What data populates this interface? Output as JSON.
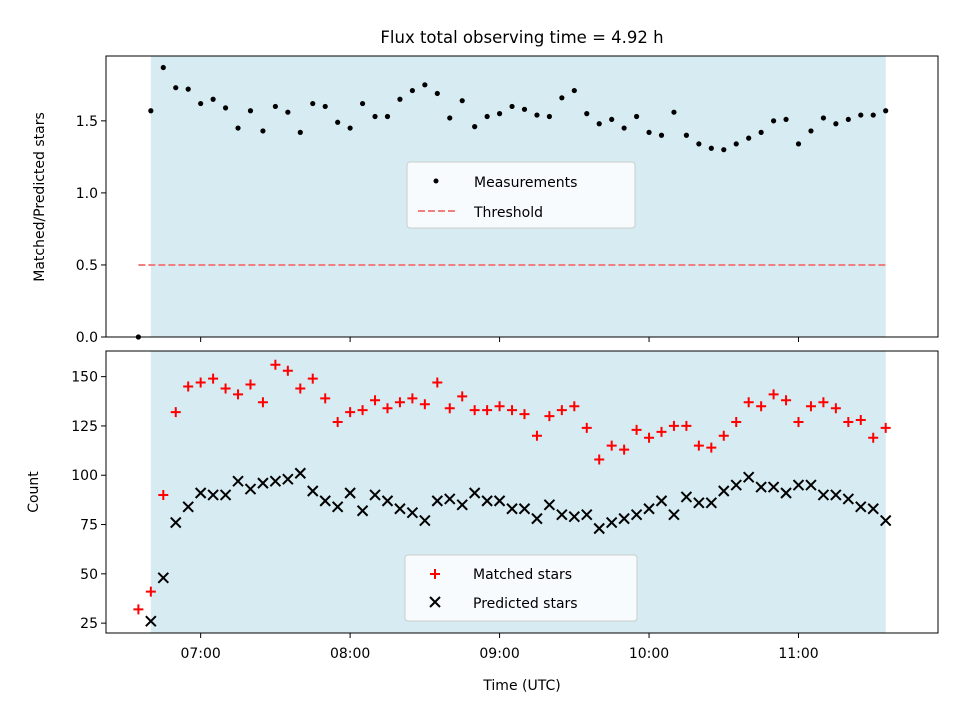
{
  "chart_data": [
    {
      "type": "scatter",
      "title": "Flux total observing time = 4.92 h",
      "ylabel": "Matched/Predicted stars",
      "xlabel": "",
      "xlim": [
        "06:22",
        "11:56"
      ],
      "ylim": [
        0,
        1.95
      ],
      "yticks": [
        0.0,
        0.5,
        1.0,
        1.5
      ],
      "ytick_labels": [
        "0.0",
        "0.5",
        "1.0",
        "1.5"
      ],
      "shaded_span": [
        "06:40",
        "11:35"
      ],
      "legend_position": "center",
      "series": [
        {
          "name": "Measurements",
          "marker": "dot",
          "color": "#000000",
          "x": [
            "06:35",
            "06:40",
            "06:45",
            "06:50",
            "06:55",
            "07:00",
            "07:05",
            "07:10",
            "07:15",
            "07:20",
            "07:25",
            "07:30",
            "07:35",
            "07:40",
            "07:45",
            "07:50",
            "07:55",
            "08:00",
            "08:05",
            "08:10",
            "08:15",
            "08:20",
            "08:25",
            "08:30",
            "08:35",
            "08:40",
            "08:45",
            "08:50",
            "08:55",
            "09:00",
            "09:05",
            "09:10",
            "09:15",
            "09:20",
            "09:25",
            "09:30",
            "09:35",
            "09:40",
            "09:45",
            "09:50",
            "09:55",
            "10:00",
            "10:05",
            "10:10",
            "10:15",
            "10:20",
            "10:25",
            "10:30",
            "10:35",
            "10:40",
            "10:45",
            "10:50",
            "10:55",
            "11:00",
            "11:05",
            "11:10",
            "11:15",
            "11:20",
            "11:25",
            "11:30",
            "11:35"
          ],
          "y": [
            0.0,
            1.57,
            1.87,
            1.73,
            1.72,
            1.62,
            1.65,
            1.59,
            1.45,
            1.57,
            1.43,
            1.6,
            1.56,
            1.42,
            1.62,
            1.6,
            1.49,
            1.45,
            1.62,
            1.53,
            1.53,
            1.65,
            1.71,
            1.75,
            1.69,
            1.52,
            1.64,
            1.46,
            1.53,
            1.55,
            1.6,
            1.58,
            1.54,
            1.53,
            1.66,
            1.71,
            1.55,
            1.48,
            1.51,
            1.45,
            1.53,
            1.42,
            1.4,
            1.56,
            1.4,
            1.34,
            1.31,
            1.3,
            1.34,
            1.38,
            1.42,
            1.5,
            1.51,
            1.34,
            1.43,
            1.52,
            1.48,
            1.51,
            1.54,
            1.54,
            1.57
          ]
        },
        {
          "name": "Threshold",
          "marker": "dashed-line",
          "color": "#f08080",
          "x": [
            "06:35",
            "11:35"
          ],
          "y": [
            0.5,
            0.5
          ]
        }
      ]
    },
    {
      "type": "scatter",
      "title": "",
      "ylabel": "Count",
      "xlabel": "Time (UTC)",
      "xlim": [
        "06:22",
        "11:56"
      ],
      "ylim": [
        20,
        163
      ],
      "yticks": [
        25,
        50,
        75,
        100,
        125,
        150
      ],
      "ytick_labels": [
        "25",
        "50",
        "75",
        "100",
        "125",
        "150"
      ],
      "xticks": [
        "07:00",
        "08:00",
        "09:00",
        "10:00",
        "11:00"
      ],
      "xtick_labels": [
        "07:00",
        "08:00",
        "09:00",
        "10:00",
        "11:00"
      ],
      "shaded_span": [
        "06:40",
        "11:35"
      ],
      "legend_position": "lower center",
      "series": [
        {
          "name": "Matched stars",
          "marker": "plus",
          "color": "#ff0000",
          "x": [
            "06:35",
            "06:40",
            "06:45",
            "06:50",
            "06:55",
            "07:00",
            "07:05",
            "07:10",
            "07:15",
            "07:20",
            "07:25",
            "07:30",
            "07:35",
            "07:40",
            "07:45",
            "07:50",
            "07:55",
            "08:00",
            "08:05",
            "08:10",
            "08:15",
            "08:20",
            "08:25",
            "08:30",
            "08:35",
            "08:40",
            "08:45",
            "08:50",
            "08:55",
            "09:00",
            "09:05",
            "09:10",
            "09:15",
            "09:20",
            "09:25",
            "09:30",
            "09:35",
            "09:40",
            "09:45",
            "09:50",
            "09:55",
            "10:00",
            "10:05",
            "10:10",
            "10:15",
            "10:20",
            "10:25",
            "10:30",
            "10:35",
            "10:40",
            "10:45",
            "10:50",
            "10:55",
            "11:00",
            "11:05",
            "11:10",
            "11:15",
            "11:20",
            "11:25",
            "11:30",
            "11:35"
          ],
          "y": [
            32,
            41,
            90,
            132,
            145,
            147,
            149,
            144,
            141,
            146,
            137,
            156,
            153,
            144,
            149,
            139,
            127,
            132,
            133,
            138,
            134,
            137,
            139,
            136,
            147,
            134,
            140,
            133,
            133,
            135,
            133,
            131,
            120,
            130,
            133,
            135,
            124,
            108,
            115,
            113,
            123,
            119,
            122,
            125,
            125,
            115,
            114,
            120,
            127,
            137,
            135,
            141,
            138,
            127,
            135,
            137,
            134,
            127,
            128,
            119,
            124
          ]
        },
        {
          "name": "Predicted stars",
          "marker": "x",
          "color": "#000000",
          "x": [
            "06:35",
            "06:40",
            "06:45",
            "06:50",
            "06:55",
            "07:00",
            "07:05",
            "07:10",
            "07:15",
            "07:20",
            "07:25",
            "07:30",
            "07:35",
            "07:40",
            "07:45",
            "07:50",
            "07:55",
            "08:00",
            "08:05",
            "08:10",
            "08:15",
            "08:20",
            "08:25",
            "08:30",
            "08:35",
            "08:40",
            "08:45",
            "08:50",
            "08:55",
            "09:00",
            "09:05",
            "09:10",
            "09:15",
            "09:20",
            "09:25",
            "09:30",
            "09:35",
            "09:40",
            "09:45",
            "09:50",
            "09:55",
            "10:00",
            "10:05",
            "10:10",
            "10:15",
            "10:20",
            "10:25",
            "10:30",
            "10:35",
            "10:40",
            "10:45",
            "10:50",
            "10:55",
            "11:00",
            "11:05",
            "11:10",
            "11:15",
            "11:20",
            "11:25",
            "11:30",
            "11:35"
          ],
          "y": [
            null,
            26,
            48,
            76,
            84,
            91,
            90,
            90,
            97,
            93,
            96,
            97,
            98,
            101,
            92,
            87,
            84,
            91,
            82,
            90,
            87,
            83,
            81,
            77,
            87,
            88,
            85,
            91,
            87,
            87,
            83,
            83,
            78,
            85,
            80,
            79,
            80,
            73,
            76,
            78,
            80,
            83,
            87,
            80,
            89,
            86,
            86,
            92,
            95,
            99,
            94,
            94,
            91,
            95,
            95,
            90,
            90,
            88,
            84,
            83,
            77
          ]
        }
      ]
    }
  ]
}
